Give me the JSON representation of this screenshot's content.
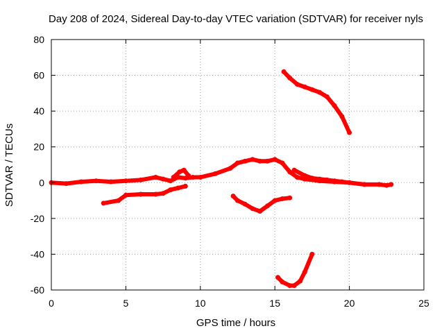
{
  "chart_data": {
    "type": "scatter",
    "title": "Day 208 of 2024, Sidereal Day-to-day VTEC variation (SDTVAR) for receiver nyls",
    "xlabel": "GPS time / hours",
    "ylabel": "SDTVAR / TECUs",
    "xlim": [
      0,
      25
    ],
    "ylim": [
      -60,
      80
    ],
    "xticks": [
      0,
      5,
      10,
      15,
      20,
      25
    ],
    "yticks": [
      -60,
      -40,
      -20,
      0,
      20,
      40,
      60,
      80
    ],
    "xtick_labels": [
      "0",
      "5",
      "10",
      "15",
      "20",
      "25"
    ],
    "ytick_labels": [
      "-60",
      "-40",
      "-20",
      "0",
      "20",
      "40",
      "60",
      "80"
    ],
    "grid": true,
    "series_color": "#ff0000",
    "series": [
      {
        "name": "arc-main",
        "x": [
          0,
          1,
          2,
          3,
          4,
          5,
          6,
          7,
          7.5,
          8,
          8.5,
          9,
          9.5,
          10,
          11,
          12,
          12.5,
          13,
          13.5,
          14,
          14.5,
          15,
          15.5,
          16,
          16.5,
          17,
          18,
          19,
          20,
          21,
          22,
          22.5,
          22.8
        ],
        "y": [
          0,
          -0.5,
          0.5,
          1,
          0.5,
          1,
          1.5,
          3,
          2,
          1,
          3,
          2.5,
          3,
          3,
          5,
          8,
          11,
          12,
          13,
          12,
          12,
          13,
          11,
          6,
          3,
          2,
          1,
          0.5,
          0,
          -1,
          -1,
          -1.5,
          -1
        ]
      },
      {
        "name": "arc-bump",
        "x": [
          8.2,
          8.6,
          8.9,
          9.2
        ],
        "y": [
          3,
          6,
          7,
          4
        ]
      },
      {
        "name": "arc-low-left",
        "x": [
          3.5,
          4.5,
          5,
          6,
          7,
          7.5,
          8,
          8.5,
          9
        ],
        "y": [
          -11.5,
          -10,
          -7,
          -6.5,
          -6.5,
          -6,
          -4,
          -3,
          -2
        ]
      },
      {
        "name": "arc-mid-dip",
        "x": [
          12.2,
          12.5,
          13,
          13.5,
          14,
          14.5,
          15,
          15.5,
          16
        ],
        "y": [
          -7.5,
          -10,
          -12,
          -14.5,
          -16,
          -13,
          -10,
          -9,
          -8.5
        ]
      },
      {
        "name": "arc-right-drop",
        "x": [
          16.3,
          17,
          17.5,
          18,
          18.5,
          19,
          19.5,
          20
        ],
        "y": [
          7,
          4,
          2.5,
          2,
          1.5,
          1,
          0.5,
          0
        ]
      },
      {
        "name": "arc-high",
        "x": [
          15.6,
          16,
          16.5,
          17,
          17.5,
          18,
          18.5,
          19,
          19.5,
          20
        ],
        "y": [
          62,
          58.5,
          55,
          53.5,
          52,
          50.5,
          48,
          43,
          37,
          28
        ]
      },
      {
        "name": "arc-low-bottom",
        "x": [
          15.2,
          15.5,
          16,
          16.3,
          16.7,
          17,
          17.5
        ],
        "y": [
          -53,
          -55.5,
          -57.5,
          -57.5,
          -55,
          -50,
          -40
        ]
      }
    ]
  }
}
